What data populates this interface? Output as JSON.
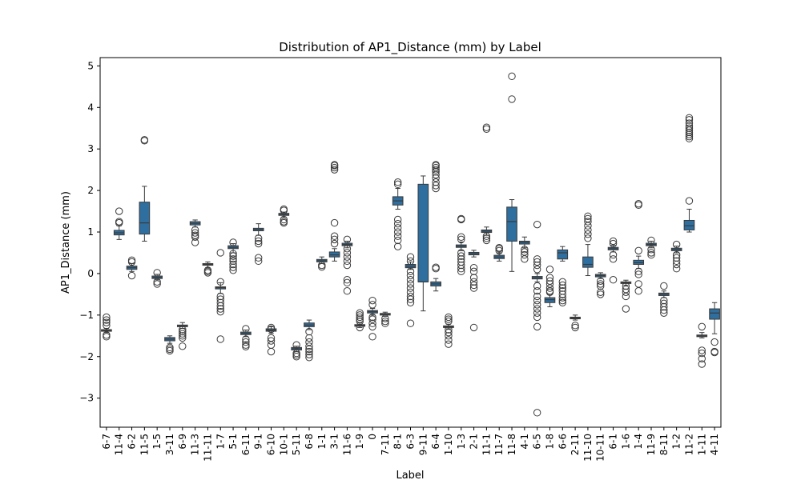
{
  "chart_data": {
    "type": "box",
    "title": "Distribution of AP1_Distance (mm) by Label",
    "xlabel": "Label",
    "ylabel": "AP1_Distance (mm)",
    "ylim": [
      -3.7,
      5.2
    ],
    "yticks": [
      -3,
      -2,
      -1,
      0,
      1,
      2,
      3,
      4,
      5
    ],
    "ytick_labels": [
      "−3",
      "−2",
      "−1",
      "0",
      "1",
      "2",
      "3",
      "4",
      "5"
    ],
    "color": "#2e6fa0",
    "categories": [
      "6-7",
      "11-4",
      "6-2",
      "11-5",
      "1-5",
      "3-11",
      "6-9",
      "11-3",
      "11-11",
      "1-7",
      "5-1",
      "6-11",
      "9-1",
      "6-10",
      "10-1",
      "5-11",
      "6-8",
      "1-1",
      "3-1",
      "11-6",
      "1-9",
      "0",
      "7-11",
      "8-1",
      "6-3",
      "9-11",
      "6-4",
      "1-10",
      "1-3",
      "2-1",
      "11-1",
      "11-7",
      "11-8",
      "4-1",
      "6-5",
      "1-8",
      "6-6",
      "2-11",
      "11-10",
      "10-11",
      "6-1",
      "1-6",
      "1-4",
      "11-9",
      "8-11",
      "1-2",
      "11-2",
      "1-11",
      "4-11"
    ],
    "boxes": [
      {
        "wl": -1.42,
        "q1": -1.39,
        "med": -1.37,
        "q3": -1.35,
        "wh": -1.32,
        "fliers": [
          -1.05,
          -1.12,
          -1.18,
          -1.25,
          -1.48,
          -1.52
        ]
      },
      {
        "wl": 0.82,
        "q1": 0.93,
        "med": 0.98,
        "q3": 1.04,
        "wh": 1.15,
        "fliers": [
          1.22,
          1.25,
          1.5
        ]
      },
      {
        "wl": 0.05,
        "q1": 0.1,
        "med": 0.14,
        "q3": 0.18,
        "wh": 0.24,
        "fliers": [
          0.28,
          0.32,
          -0.05
        ]
      },
      {
        "wl": 0.78,
        "q1": 0.95,
        "med": 1.22,
        "q3": 1.72,
        "wh": 2.1,
        "fliers": [
          3.2,
          3.22
        ]
      },
      {
        "wl": -0.15,
        "q1": -0.12,
        "med": -0.09,
        "q3": -0.06,
        "wh": -0.02,
        "fliers": [
          0.02,
          -0.2,
          -0.25
        ]
      },
      {
        "wl": -1.68,
        "q1": -1.62,
        "med": -1.58,
        "q3": -1.54,
        "wh": -1.5,
        "fliers": [
          -1.78,
          -1.82,
          -1.86
        ]
      },
      {
        "wl": -1.32,
        "q1": -1.28,
        "med": -1.26,
        "q3": -1.24,
        "wh": -1.18,
        "fliers": [
          -1.35,
          -1.4,
          -1.45,
          -1.5,
          -1.55,
          -1.75
        ]
      },
      {
        "wl": 1.12,
        "q1": 1.17,
        "med": 1.21,
        "q3": 1.25,
        "wh": 1.29,
        "fliers": [
          1.05,
          0.98,
          0.92,
          0.88,
          0.75
        ]
      },
      {
        "wl": 0.14,
        "q1": 0.2,
        "med": 0.22,
        "q3": 0.24,
        "wh": 0.28,
        "fliers": [
          0.08,
          0.05,
          0.02
        ]
      },
      {
        "wl": -0.48,
        "q1": -0.37,
        "med": -0.34,
        "q3": -0.32,
        "wh": -0.22,
        "fliers": [
          0.5,
          -0.2,
          -0.55,
          -0.62,
          -0.7,
          -0.78,
          -0.85,
          -0.92,
          -1.58
        ]
      },
      {
        "wl": 0.5,
        "q1": 0.6,
        "med": 0.63,
        "q3": 0.67,
        "wh": 0.72,
        "fliers": [
          0.75,
          0.48,
          0.42,
          0.35,
          0.3,
          0.22,
          0.15,
          0.08
        ]
      },
      {
        "wl": -1.52,
        "q1": -1.47,
        "med": -1.44,
        "q3": -1.41,
        "wh": -1.36,
        "fliers": [
          -1.33,
          -1.58,
          -1.65,
          -1.72,
          -1.76
        ]
      },
      {
        "wl": 0.92,
        "q1": 1.03,
        "med": 1.06,
        "q3": 1.09,
        "wh": 1.2,
        "fliers": [
          0.85,
          0.78,
          0.72,
          0.38,
          0.3
        ]
      },
      {
        "wl": -1.44,
        "q1": -1.39,
        "med": -1.36,
        "q3": -1.33,
        "wh": -1.28,
        "fliers": [
          -1.3,
          -1.34,
          -1.55,
          -1.62,
          -1.72,
          -1.88
        ]
      },
      {
        "wl": 1.36,
        "q1": 1.4,
        "med": 1.42,
        "q3": 1.45,
        "wh": 1.48,
        "fliers": [
          1.52,
          1.55,
          1.3,
          1.25,
          1.22
        ]
      },
      {
        "wl": -1.88,
        "q1": -1.84,
        "med": -1.81,
        "q3": -1.78,
        "wh": -1.75,
        "fliers": [
          -1.72,
          -1.92,
          -1.96,
          -2.0
        ]
      },
      {
        "wl": -1.35,
        "q1": -1.28,
        "med": -1.24,
        "q3": -1.19,
        "wh": -1.12,
        "fliers": [
          -1.4,
          -1.55,
          -1.65,
          -1.75,
          -1.82,
          -1.88,
          -1.95,
          -2.02
        ]
      },
      {
        "wl": 0.24,
        "q1": 0.28,
        "med": 0.31,
        "q3": 0.34,
        "wh": 0.4,
        "fliers": [
          0.2,
          0.16
        ]
      },
      {
        "wl": 0.3,
        "q1": 0.4,
        "med": 0.45,
        "q3": 0.52,
        "wh": 0.6,
        "fliers": [
          0.72,
          0.82,
          0.9,
          1.22,
          2.5,
          2.55,
          2.6,
          2.62
        ]
      },
      {
        "wl": 0.62,
        "q1": 0.67,
        "med": 0.7,
        "q3": 0.73,
        "wh": 0.78,
        "fliers": [
          0.82,
          0.6,
          0.5,
          0.4,
          0.3,
          0.2,
          -0.15,
          -0.22,
          -0.42
        ]
      },
      {
        "wl": -1.3,
        "q1": -1.27,
        "med": -1.25,
        "q3": -1.23,
        "wh": -1.19,
        "fliers": [
          -0.95,
          -1.0,
          -1.05,
          -1.1,
          -1.15,
          -1.3
        ]
      },
      {
        "wl": -1.0,
        "q1": -0.95,
        "med": -0.92,
        "q3": -0.89,
        "wh": -0.84,
        "fliers": [
          -0.65,
          -0.75,
          -1.05,
          -1.1,
          -1.2,
          -1.28,
          -1.52
        ]
      },
      {
        "wl": -1.03,
        "q1": -1.0,
        "med": -0.98,
        "q3": -0.96,
        "wh": -0.93,
        "fliers": [
          -1.08,
          -1.15,
          -1.2
        ]
      },
      {
        "wl": 1.55,
        "q1": 1.65,
        "med": 1.75,
        "q3": 1.85,
        "wh": 2.05,
        "fliers": [
          2.15,
          2.2,
          1.3,
          1.2,
          1.1,
          1.0,
          0.9,
          0.8,
          0.65
        ]
      },
      {
        "wl": 0.1,
        "q1": 0.14,
        "med": 0.18,
        "q3": 0.22,
        "wh": 0.28,
        "fliers": [
          0.4,
          0.3,
          0.05,
          -0.05,
          -0.15,
          -0.25,
          -0.35,
          -0.45,
          -0.55,
          -0.62,
          -0.7,
          -1.2
        ]
      },
      {
        "wl": -0.9,
        "q1": -0.2,
        "med": -0.2,
        "q3": 2.15,
        "wh": 2.35,
        "fliers": []
      },
      {
        "wl": -0.42,
        "q1": -0.3,
        "med": -0.25,
        "q3": -0.2,
        "wh": -0.12,
        "fliers": [
          0.15,
          0.12,
          2.05,
          2.12,
          2.2,
          2.3,
          2.38,
          2.45,
          2.5,
          2.55,
          2.6,
          2.62
        ]
      },
      {
        "wl": -1.33,
        "q1": -1.3,
        "med": -1.28,
        "q3": -1.26,
        "wh": -1.22,
        "fliers": [
          -1.05,
          -1.1,
          -1.15,
          -1.35,
          -1.42,
          -1.5,
          -1.6,
          -1.7
        ]
      },
      {
        "wl": 0.55,
        "q1": 0.63,
        "med": 0.66,
        "q3": 0.69,
        "wh": 0.76,
        "fliers": [
          0.82,
          0.88,
          1.3,
          1.32,
          0.5,
          0.42,
          0.35,
          0.28,
          0.2,
          0.12,
          0.05
        ]
      },
      {
        "wl": 0.4,
        "q1": 0.45,
        "med": 0.48,
        "q3": 0.51,
        "wh": 0.56,
        "fliers": [
          0.14,
          0.05,
          -0.1,
          -0.2,
          -0.28,
          -0.35,
          -1.3
        ]
      },
      {
        "wl": 0.92,
        "q1": 0.99,
        "med": 1.02,
        "q3": 1.05,
        "wh": 1.12,
        "fliers": [
          0.9,
          0.85,
          0.8,
          3.48,
          3.52
        ]
      },
      {
        "wl": 0.3,
        "q1": 0.36,
        "med": 0.4,
        "q3": 0.44,
        "wh": 0.5,
        "fliers": [
          0.55,
          0.6,
          0.62
        ]
      },
      {
        "wl": 0.05,
        "q1": 0.78,
        "med": 1.25,
        "q3": 1.6,
        "wh": 1.78,
        "fliers": [
          4.2,
          4.75
        ]
      },
      {
        "wl": 0.62,
        "q1": 0.71,
        "med": 0.75,
        "q3": 0.78,
        "wh": 0.88,
        "fliers": [
          0.58,
          0.52,
          0.45,
          0.35
        ]
      },
      {
        "wl": -0.2,
        "q1": -0.13,
        "med": -0.1,
        "q3": -0.07,
        "wh": 0.0,
        "fliers": [
          0.35,
          0.28,
          0.2,
          0.1,
          -0.3,
          -0.42,
          -0.55,
          -0.65,
          -0.75,
          -0.85,
          -0.95,
          -1.05,
          -1.28,
          -3.35,
          1.18
        ]
      },
      {
        "wl": -0.8,
        "q1": -0.7,
        "med": -0.63,
        "q3": -0.58,
        "wh": -0.5,
        "fliers": [
          0.1,
          -0.1,
          -0.18,
          -0.25,
          -0.35,
          -0.42,
          -0.45
        ]
      },
      {
        "wl": 0.3,
        "q1": 0.35,
        "med": 0.5,
        "q3": 0.57,
        "wh": 0.65,
        "fliers": [
          -0.2,
          -0.28,
          -0.35,
          -0.42,
          -0.5,
          -0.58,
          -0.65,
          -0.7
        ]
      },
      {
        "wl": -1.12,
        "q1": -1.09,
        "med": -1.07,
        "q3": -1.05,
        "wh": -1.0,
        "fliers": [
          -1.25,
          -1.3
        ]
      },
      {
        "wl": -0.05,
        "q1": 0.15,
        "med": 0.22,
        "q3": 0.4,
        "wh": 0.7,
        "fliers": [
          0.85,
          0.95,
          1.05,
          1.15,
          1.25,
          1.32,
          1.38
        ]
      },
      {
        "wl": -0.12,
        "q1": -0.08,
        "med": -0.05,
        "q3": -0.02,
        "wh": 0.02,
        "fliers": [
          -0.18,
          -0.25,
          -0.3,
          -0.45,
          -0.5
        ]
      },
      {
        "wl": 0.52,
        "q1": 0.57,
        "med": 0.6,
        "q3": 0.63,
        "wh": 0.68,
        "fliers": [
          0.78,
          0.72,
          0.45,
          0.35,
          -0.15
        ]
      },
      {
        "wl": -0.28,
        "q1": -0.24,
        "med": -0.22,
        "q3": -0.2,
        "wh": -0.16,
        "fliers": [
          -0.3,
          -0.38,
          -0.45,
          -0.55,
          -0.85
        ]
      },
      {
        "wl": 0.12,
        "q1": 0.22,
        "med": 0.26,
        "q3": 0.32,
        "wh": 0.42,
        "fliers": [
          0.55,
          1.65,
          1.68,
          0.05,
          -0.02,
          -0.25,
          -0.42
        ]
      },
      {
        "wl": 0.62,
        "q1": 0.67,
        "med": 0.7,
        "q3": 0.73,
        "wh": 0.78,
        "fliers": [
          0.8,
          0.58,
          0.5,
          0.45
        ]
      },
      {
        "wl": -0.58,
        "q1": -0.53,
        "med": -0.5,
        "q3": -0.47,
        "wh": -0.42,
        "fliers": [
          -0.3,
          -0.65,
          -0.72,
          -0.8,
          -0.88,
          -0.95
        ]
      },
      {
        "wl": 0.5,
        "q1": 0.55,
        "med": 0.58,
        "q3": 0.61,
        "wh": 0.66,
        "fliers": [
          0.7,
          0.45,
          0.38,
          0.3,
          0.22,
          0.12
        ]
      },
      {
        "wl": 1.0,
        "q1": 1.05,
        "med": 1.15,
        "q3": 1.28,
        "wh": 1.55,
        "fliers": [
          1.75,
          3.25,
          3.3,
          3.35,
          3.4,
          3.45,
          3.5,
          3.55,
          3.62,
          3.7,
          3.75
        ]
      },
      {
        "wl": -1.55,
        "q1": -1.52,
        "med": -1.5,
        "q3": -1.48,
        "wh": -1.42,
        "fliers": [
          -1.28,
          -1.85,
          -1.92,
          -2.05,
          -2.18
        ]
      },
      {
        "wl": -1.45,
        "q1": -1.1,
        "med": -0.95,
        "q3": -0.85,
        "wh": -0.7,
        "fliers": [
          -1.65,
          -1.88,
          -1.9
        ]
      }
    ]
  }
}
